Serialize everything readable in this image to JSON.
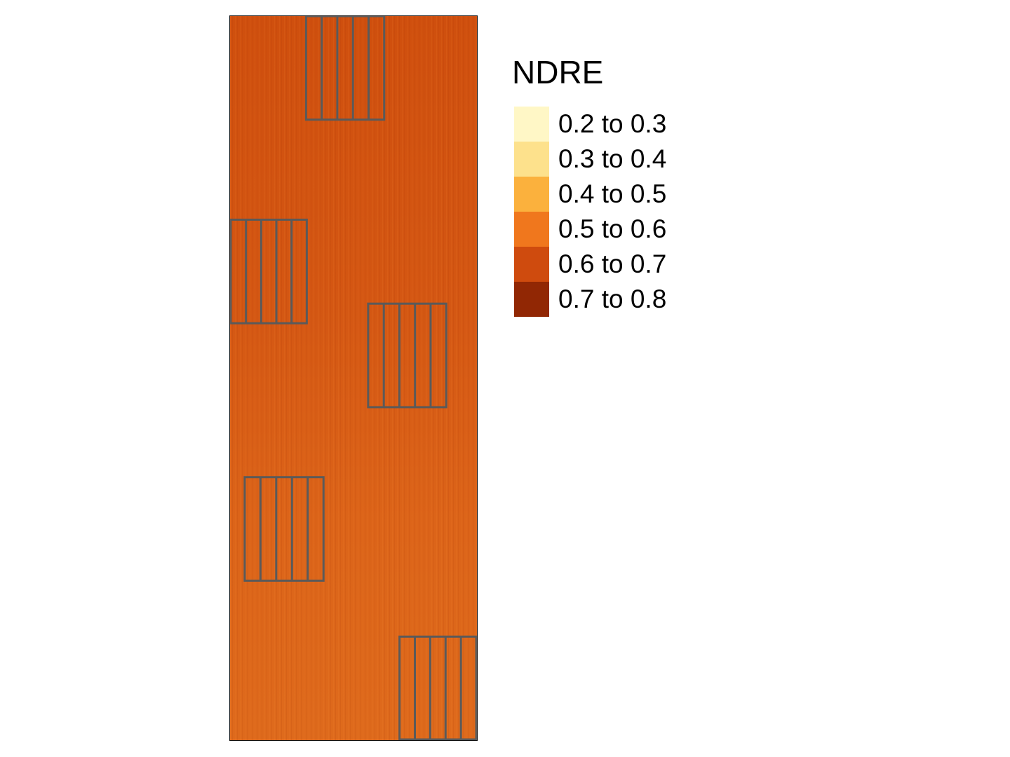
{
  "legend": {
    "title": "NDRE",
    "classes": [
      {
        "label": "0.2 to 0.3",
        "color": "#fff7c6"
      },
      {
        "label": "0.3 to 0.4",
        "color": "#fde18c"
      },
      {
        "label": "0.4 to 0.5",
        "color": "#fbb13d"
      },
      {
        "label": "0.5 to 0.6",
        "color": "#f0771d"
      },
      {
        "label": "0.6 to 0.7",
        "color": "#cf4b0e"
      },
      {
        "label": "0.7 to 0.8",
        "color": "#912704"
      }
    ]
  },
  "map": {
    "raster_dominant_color": "#d35512",
    "plot_outline_color": "#5a5a5a",
    "plot_block_count": 5
  }
}
